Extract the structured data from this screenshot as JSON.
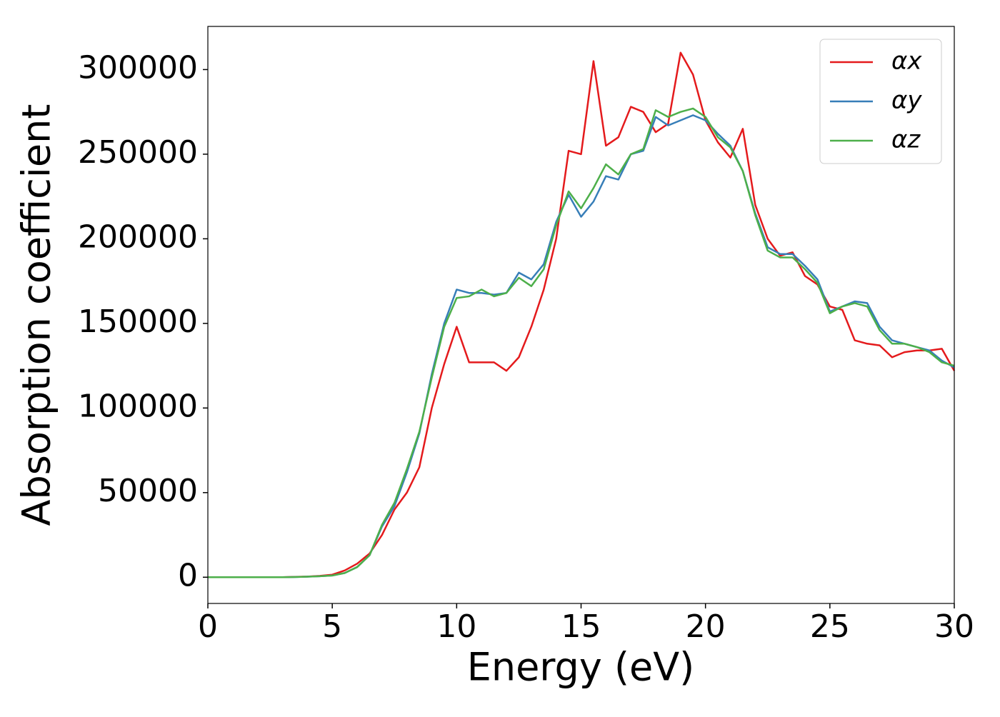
{
  "chart_data": {
    "type": "line",
    "xlabel": "Energy (eV)",
    "ylabel": "Absorption coefficient",
    "x": [
      0,
      0.5,
      1,
      1.5,
      2,
      2.5,
      3,
      3.5,
      4,
      4.5,
      5,
      5.5,
      6,
      6.5,
      7,
      7.5,
      8,
      8.5,
      9,
      9.5,
      10,
      10.5,
      11,
      11.5,
      12,
      12.5,
      13,
      13.5,
      14,
      14.5,
      15,
      15.5,
      16,
      16.5,
      17,
      17.5,
      18,
      18.5,
      19,
      19.5,
      20,
      20.5,
      21,
      21.5,
      22,
      22.5,
      23,
      23.5,
      24,
      24.5,
      25,
      25.5,
      26,
      26.5,
      27,
      27.5,
      28,
      28.5,
      29,
      29.5,
      30
    ],
    "series": [
      {
        "name": "αx",
        "color": "#e41a1c",
        "values": [
          0,
          0,
          0,
          0,
          0,
          0,
          0,
          200,
          400,
          800,
          1500,
          4000,
          8000,
          14000,
          25000,
          40000,
          50000,
          65000,
          100000,
          126000,
          148000,
          127000,
          127000,
          127000,
          122000,
          130000,
          148000,
          170000,
          200000,
          252000,
          250000,
          305000,
          255000,
          260000,
          278000,
          275000,
          263000,
          268000,
          310000,
          297000,
          270000,
          257000,
          248000,
          265000,
          220000,
          200000,
          190000,
          192000,
          178000,
          173000,
          160000,
          158000,
          140000,
          138000,
          137000,
          130000,
          133000,
          134000,
          134000,
          135000,
          122000
        ]
      },
      {
        "name": "αy",
        "color": "#377eb8",
        "values": [
          0,
          0,
          0,
          0,
          0,
          0,
          0,
          100,
          300,
          600,
          1000,
          2500,
          6000,
          13000,
          30000,
          42000,
          62000,
          85000,
          120000,
          150000,
          170000,
          168000,
          168000,
          167000,
          168000,
          180000,
          176000,
          185000,
          210000,
          226000,
          213000,
          222000,
          237000,
          235000,
          250000,
          252000,
          272000,
          267000,
          270000,
          273000,
          270000,
          262000,
          255000,
          240000,
          215000,
          195000,
          191000,
          191000,
          184000,
          176000,
          157000,
          160000,
          163000,
          162000,
          148000,
          140000,
          138000,
          136000,
          134000,
          128000,
          124000
        ]
      },
      {
        "name": "αz",
        "color": "#4daf4a",
        "values": [
          0,
          0,
          0,
          0,
          0,
          0,
          0,
          100,
          300,
          600,
          1000,
          2500,
          6000,
          13000,
          31000,
          44000,
          64000,
          86000,
          118000,
          148000,
          165000,
          166000,
          170000,
          166000,
          168000,
          177000,
          172000,
          182000,
          208000,
          228000,
          218000,
          230000,
          244000,
          238000,
          250000,
          253000,
          276000,
          272000,
          275000,
          277000,
          272000,
          260000,
          254000,
          240000,
          214000,
          193000,
          189000,
          189000,
          182000,
          174000,
          156000,
          160000,
          162000,
          160000,
          146000,
          138000,
          138000,
          136000,
          133000,
          127000,
          125000
        ]
      }
    ],
    "xlim": [
      0,
      30
    ],
    "ylim": [
      -15500,
      325500
    ],
    "xticks": [
      0,
      5,
      10,
      15,
      20,
      25,
      30
    ],
    "yticks": [
      0,
      50000,
      100000,
      150000,
      200000,
      250000,
      300000
    ],
    "legend": "upper right"
  }
}
